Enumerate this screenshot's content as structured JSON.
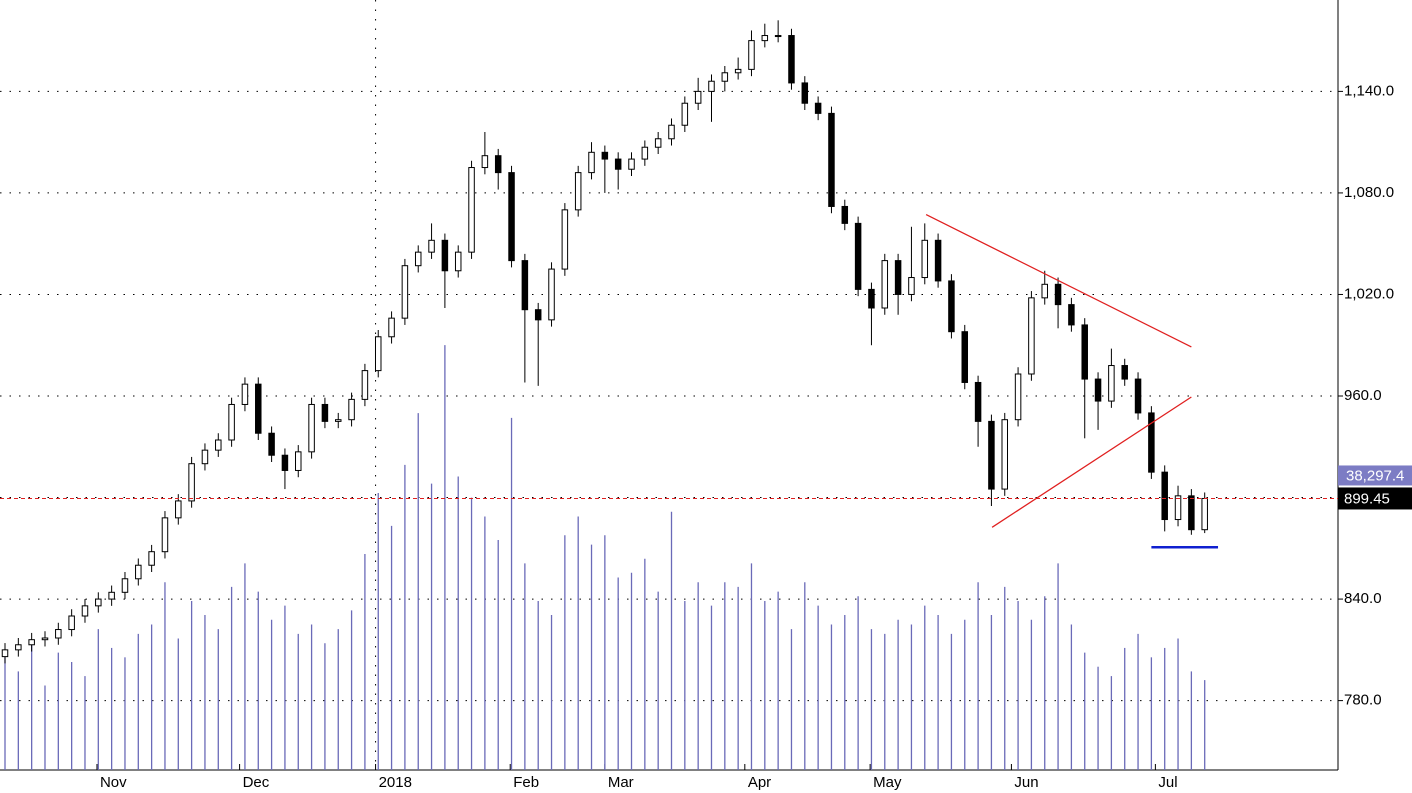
{
  "chart_data": {
    "type": "candlestick",
    "open": [
      806,
      810,
      813,
      816,
      817,
      822,
      830,
      836,
      840,
      844,
      852,
      860,
      868,
      888,
      898,
      920,
      928,
      934,
      955,
      967,
      938,
      925,
      916,
      927,
      955,
      945,
      946,
      958,
      975,
      995,
      1006,
      1037,
      1045,
      1052,
      1034,
      1045,
      1095,
      1102,
      1092,
      1040,
      1011,
      1005,
      1035,
      1070,
      1092,
      1104,
      1100,
      1094,
      1100,
      1107,
      1112,
      1120,
      1133,
      1140,
      1146,
      1151,
      1153,
      1170,
      1173,
      1173,
      1145,
      1133,
      1127,
      1072,
      1062,
      1023,
      1012,
      1040,
      1020,
      1030,
      1052,
      1028,
      998,
      968,
      945,
      905,
      946,
      973,
      1018,
      1026,
      1014,
      1002,
      970,
      957,
      978,
      970,
      950,
      915,
      887,
      901,
      881
    ],
    "high": [
      814,
      817,
      820,
      821,
      826,
      834,
      840,
      844,
      848,
      856,
      864,
      872,
      892,
      902,
      924,
      932,
      938,
      959,
      971,
      971,
      942,
      929,
      931,
      959,
      959,
      950,
      962,
      979,
      999,
      1010,
      1041,
      1049,
      1062,
      1056,
      1049,
      1099,
      1116,
      1106,
      1096,
      1044,
      1015,
      1039,
      1074,
      1096,
      1110,
      1108,
      1104,
      1104,
      1111,
      1116,
      1124,
      1137,
      1148,
      1150,
      1155,
      1160,
      1176,
      1180,
      1182,
      1177,
      1149,
      1137,
      1131,
      1076,
      1066,
      1027,
      1044,
      1044,
      1060,
      1062,
      1056,
      1032,
      1002,
      972,
      949,
      950,
      977,
      1022,
      1034,
      1030,
      1018,
      1006,
      974,
      988,
      982,
      974,
      954,
      919,
      907,
      905,
      903
    ],
    "low": [
      802,
      806,
      809,
      812,
      813,
      818,
      826,
      832,
      836,
      840,
      848,
      856,
      864,
      884,
      894,
      916,
      924,
      930,
      951,
      934,
      921,
      905,
      912,
      923,
      941,
      941,
      942,
      954,
      971,
      991,
      1002,
      1033,
      1041,
      1012,
      1030,
      1041,
      1091,
      1082,
      1036,
      968,
      966,
      1001,
      1031,
      1066,
      1088,
      1080,
      1082,
      1090,
      1096,
      1103,
      1108,
      1116,
      1129,
      1122,
      1140,
      1147,
      1149,
      1166,
      1169,
      1141,
      1129,
      1123,
      1068,
      1058,
      1019,
      990,
      1008,
      1008,
      1016,
      1026,
      1024,
      994,
      964,
      930,
      895,
      901,
      942,
      969,
      1014,
      1000,
      998,
      935,
      940,
      953,
      966,
      946,
      911,
      880,
      883,
      878,
      879
    ],
    "close": [
      810,
      813,
      816,
      817,
      822,
      830,
      836,
      840,
      844,
      852,
      860,
      868,
      888,
      898,
      920,
      928,
      934,
      955,
      967,
      938,
      925,
      916,
      927,
      955,
      945,
      946,
      958,
      975,
      995,
      1006,
      1037,
      1045,
      1052,
      1034,
      1045,
      1095,
      1102,
      1092,
      1040,
      1011,
      1005,
      1035,
      1070,
      1092,
      1104,
      1100,
      1094,
      1100,
      1107,
      1112,
      1120,
      1133,
      1140,
      1146,
      1151,
      1153,
      1170,
      1173,
      1173,
      1145,
      1133,
      1127,
      1072,
      1062,
      1023,
      1012,
      1040,
      1020,
      1030,
      1052,
      1028,
      998,
      968,
      945,
      905,
      946,
      973,
      1018,
      1026,
      1014,
      1002,
      970,
      957,
      978,
      970,
      950,
      915,
      887,
      901,
      881,
      899.45
    ],
    "volume": {
      "color": "#6a6ab8",
      "values": [
        48000,
        42000,
        55000,
        36000,
        50000,
        46000,
        40000,
        60000,
        52000,
        48000,
        58000,
        62000,
        80000,
        56000,
        72000,
        66000,
        60000,
        78000,
        88000,
        76000,
        64000,
        70000,
        58000,
        62000,
        54000,
        60000,
        68000,
        92000,
        118000,
        104000,
        130000,
        152000,
        122000,
        181000,
        125000,
        116000,
        108000,
        98000,
        150000,
        88000,
        72000,
        66000,
        100000,
        108000,
        96000,
        100000,
        82000,
        84000,
        90000,
        76000,
        110000,
        72000,
        80000,
        70000,
        80000,
        78000,
        88000,
        72000,
        76000,
        60000,
        80000,
        70000,
        62000,
        66000,
        74000,
        60000,
        58000,
        64000,
        62000,
        70000,
        66000,
        58000,
        64000,
        80000,
        66000,
        78000,
        72000,
        64000,
        74000,
        88000,
        62000,
        50000,
        44000,
        40000,
        52000,
        58000,
        48000,
        52000,
        56000,
        42000,
        38297.4
      ],
      "last_label": "38,297.4",
      "lim": [
        0,
        328000
      ]
    },
    "ylim": [
      739,
      1194
    ],
    "yticks": [
      {
        "value": 780,
        "label": "780.0"
      },
      {
        "value": 840,
        "label": "840.0"
      },
      {
        "value": 900,
        "label": "900.0"
      },
      {
        "value": 960,
        "label": "960.0"
      },
      {
        "value": 1020,
        "label": "1,020.0"
      },
      {
        "value": 1080,
        "label": "1,080.0"
      },
      {
        "value": 1140,
        "label": "1,140.0"
      }
    ],
    "xlim": [
      -0.375,
      100
    ],
    "xticks": [
      {
        "value": 6.9,
        "label": "Nov"
      },
      {
        "value": 17.6,
        "label": "Dec"
      },
      {
        "value": 27.8,
        "label": "2018"
      },
      {
        "value": 37.9,
        "label": "Feb"
      },
      {
        "value": 45,
        "label": "Mar"
      },
      {
        "value": 55.5,
        "label": "Apr"
      },
      {
        "value": 64.9,
        "label": "May"
      },
      {
        "value": 75.5,
        "label": "Jun"
      },
      {
        "value": 86.3,
        "label": "Jul"
      }
    ],
    "year_tick": 2,
    "grid": true,
    "trendlines": [
      {
        "from": [
          138.2,
          1067.2
        ],
        "to": [
          178,
          989
        ],
        "color": "#e02020"
      },
      {
        "from": [
          148.1,
          882.4
        ],
        "to": [
          178,
          959.4
        ],
        "color": "#e02020"
      },
      {
        "from": [
          172,
          870.6
        ],
        "to": [
          182,
          870.6
        ],
        "color": "#1020d0"
      }
    ],
    "trend_index_scale": 0.5
  }
}
